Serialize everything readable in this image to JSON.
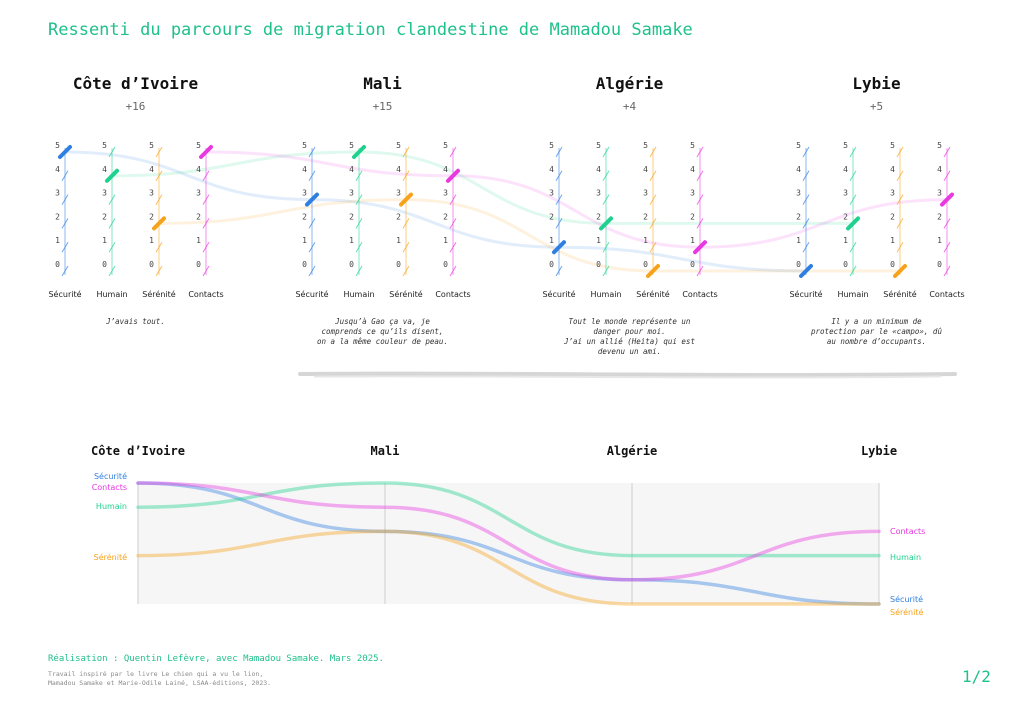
{
  "title": "Ressenti du parcours de migration clandestine de Mamadou Samake",
  "colors": {
    "sécurité": "#2f7fe0",
    "humain": "#1fd18e",
    "sérénité": "#f7a21b",
    "contacts": "#e838e0",
    "accent": "#1fc18a"
  },
  "chart_data": [
    {
      "type": "parallel-coordinates",
      "axes": [
        "Sécurité",
        "Humain",
        "Sérénité",
        "Contacts"
      ],
      "ticks": [
        "0",
        "1",
        "2",
        "3",
        "4",
        "5"
      ],
      "ylim": [
        0,
        5
      ],
      "stages": [
        {
          "country": "Côte d’Ivoire",
          "score": "+16",
          "values": [
            5,
            4,
            2,
            5
          ],
          "quote": [
            "J’avais tout."
          ]
        },
        {
          "country": "Mali",
          "score": "+15",
          "values": [
            3,
            5,
            3,
            4
          ],
          "quote": [
            "Jusqu’à Gao ça va, je",
            "comprends ce qu’ils disent,",
            "on a la même couleur de peau."
          ]
        },
        {
          "country": "Algérie",
          "score": "+4",
          "values": [
            1,
            2,
            0,
            1
          ],
          "quote": [
            "Tout le monde représente un",
            "danger pour moi.",
            "J’ai un allié (Heita) qui est",
            "devenu un ami."
          ]
        },
        {
          "country": "Lybie",
          "score": "+5",
          "values": [
            0,
            2,
            0,
            3
          ],
          "quote": [
            "Il y a un minimum de",
            "protection par le «campo», dû",
            "au nombre d’occupants."
          ]
        }
      ]
    },
    {
      "type": "line",
      "x": [
        "Côte d’Ivoire",
        "Mali",
        "Algérie",
        "Lybie"
      ],
      "ylim": [
        0,
        5
      ],
      "series": [
        {
          "name": "Sécurité",
          "values": [
            5,
            3,
            1,
            0
          ]
        },
        {
          "name": "Humain",
          "values": [
            4,
            5,
            2,
            2
          ]
        },
        {
          "name": "Sérénité",
          "values": [
            2,
            3,
            0,
            0
          ]
        },
        {
          "name": "Contacts",
          "values": [
            5,
            4,
            1,
            3
          ]
        }
      ]
    }
  ],
  "footer": {
    "credit": "Réalisation : Quentin Lefèvre, avec Mamadou Samake. Mars 2025.",
    "source_line1": "Travail inspiré par le livre Le chien qui a vu le lion,",
    "source_line2": "Mamadou Samake et Marie-Odile Lainé, LSAA-éditions, 2023.",
    "page": "1/2"
  }
}
